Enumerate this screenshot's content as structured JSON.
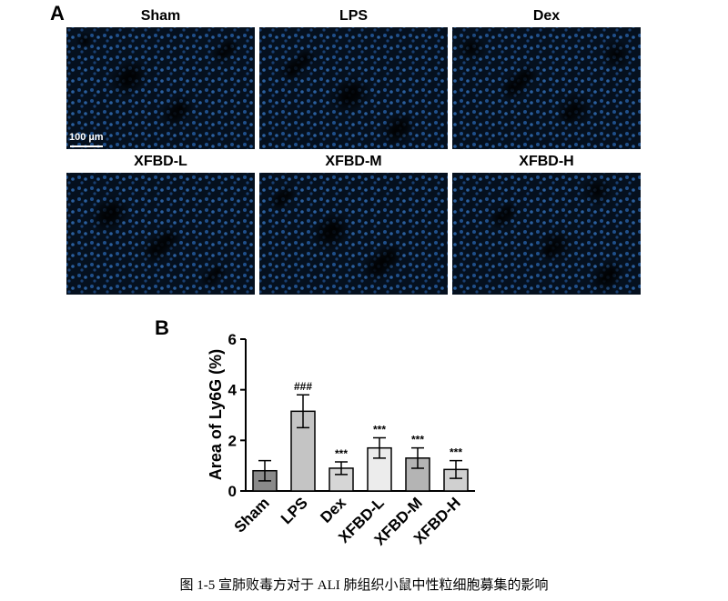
{
  "figure": {
    "panel_a": {
      "label": "A",
      "scale_bar": "100 µm",
      "images": [
        "Sham",
        "LPS",
        "Dex",
        "XFBD-L",
        "XFBD-M",
        "XFBD-H"
      ]
    },
    "caption": "图 1-5  宣肺败毒方对于 ALI 肺组织小鼠中性粒细胞募集的影响"
  },
  "chart_data": {
    "type": "bar",
    "panel_label": "B",
    "ylabel": "Area of Ly6G (%)",
    "categories": [
      "Sham",
      "LPS",
      "Dex",
      "XFBD-L",
      "XFBD-M",
      "XFBD-H"
    ],
    "values": [
      0.8,
      3.15,
      0.9,
      1.7,
      1.3,
      0.85
    ],
    "errors": [
      0.4,
      0.65,
      0.25,
      0.4,
      0.4,
      0.35
    ],
    "annotations": [
      null,
      "###",
      "***",
      "***",
      "***",
      "***"
    ],
    "colors": [
      "#8a8a8a",
      "#c4c4c4",
      "#d6d6d6",
      "#ececec",
      "#b4b4b4",
      "#d0d0d0"
    ],
    "ylim": [
      0,
      6
    ],
    "yticks": [
      0,
      2,
      4,
      6
    ]
  }
}
